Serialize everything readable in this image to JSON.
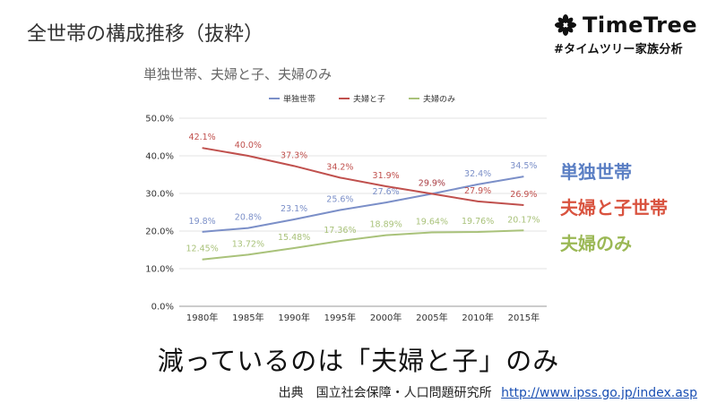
{
  "slide_title": "全世帯の構成推移（抜粋）",
  "brand": {
    "name": "TimeTree",
    "tag": "#タイムツリー家族分析",
    "icon": "leaf-clover-icon"
  },
  "side_labels": [
    {
      "text": "単独世帯",
      "color": "#5b7fc4"
    },
    {
      "text": "夫婦と子世帯",
      "color": "#d9533f"
    },
    {
      "text": "夫婦のみ",
      "color": "#9bb855"
    }
  ],
  "conclusion": "減っているのは「夫婦と子」のみ",
  "source": {
    "label": "出典　国立社会保障・人口問題研究所",
    "url": "http://www.ipss.go.jp/index.asp"
  },
  "chart_data": {
    "type": "line",
    "title": "単独世帯、夫婦と子、夫婦のみ",
    "categories": [
      "1980年",
      "1985年",
      "1990年",
      "1995年",
      "2000年",
      "2005年",
      "2010年",
      "2015年"
    ],
    "ylim": [
      0,
      50
    ],
    "yticks": [
      "0.0%",
      "10.0%",
      "20.0%",
      "30.0%",
      "40.0%",
      "50.0%"
    ],
    "grid": true,
    "legend": "top",
    "series": [
      {
        "name": "単独世帯",
        "color": "#7b8fc8",
        "values": [
          19.8,
          20.8,
          23.1,
          25.6,
          27.6,
          29.9,
          32.4,
          34.5
        ],
        "labels": [
          "19.8%",
          "20.8%",
          "23.1%",
          "25.6%",
          "27.6%",
          "29.9%",
          "32.4%",
          "34.5%"
        ]
      },
      {
        "name": "夫婦と子",
        "color": "#c0504d",
        "values": [
          42.1,
          40.0,
          37.3,
          34.2,
          31.9,
          29.9,
          27.9,
          26.9
        ],
        "labels": [
          "42.1%",
          "40.0%",
          "37.3%",
          "34.2%",
          "31.9%",
          "29.9%",
          "27.9%",
          "26.9%"
        ]
      },
      {
        "name": "夫婦のみ",
        "color": "#a9c27a",
        "values": [
          12.45,
          13.72,
          15.48,
          17.36,
          18.89,
          19.64,
          19.76,
          20.17
        ],
        "labels": [
          "12.45%",
          "13.72%",
          "15.48%",
          "17.36%",
          "18.89%",
          "19.64%",
          "19.76%",
          "20.17%"
        ]
      }
    ]
  }
}
